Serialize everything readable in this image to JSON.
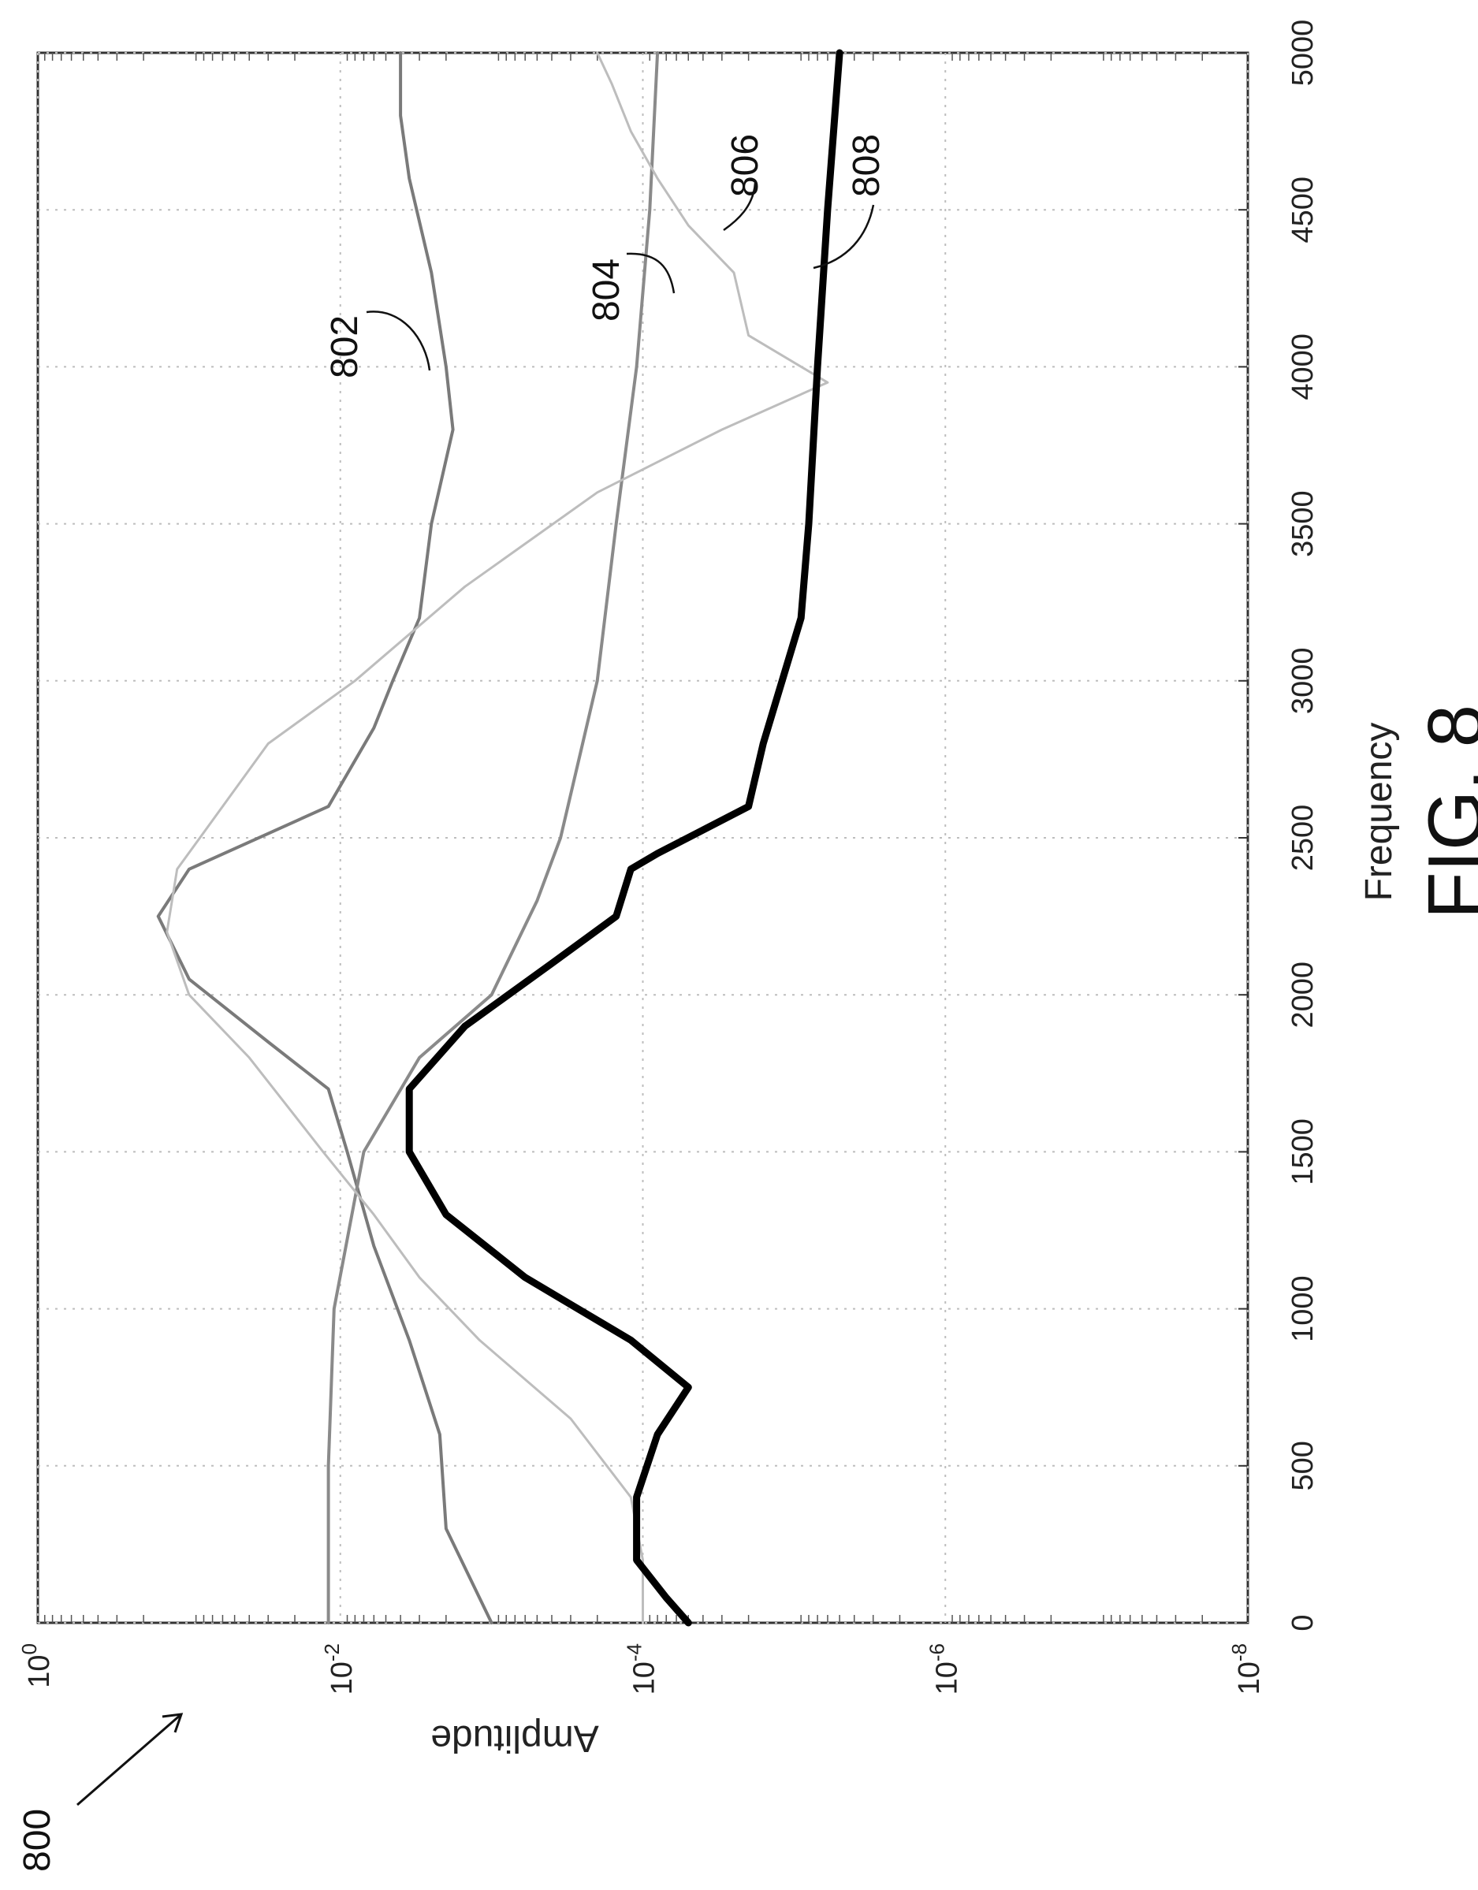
{
  "figure": {
    "ref_number": "800",
    "caption": "FIG. 8"
  },
  "chart_data": {
    "type": "line",
    "xlabel": "Frequency",
    "ylabel": "Amplitude",
    "xlim": [
      0,
      5000
    ],
    "ylim": [
      1e-08,
      1
    ],
    "yscale": "log",
    "grid": true,
    "x_ticks": [
      "0",
      "500",
      "1000",
      "1500",
      "2000",
      "2500",
      "3000",
      "3500",
      "4000",
      "4500",
      "5000"
    ],
    "y_ticks": [
      {
        "base": "10",
        "exp": "0"
      },
      {
        "base": "10",
        "exp": "-2"
      },
      {
        "base": "10",
        "exp": "-4"
      },
      {
        "base": "10",
        "exp": "-6"
      },
      {
        "base": "10",
        "exp": "-8"
      }
    ],
    "series": [
      {
        "name": "802",
        "color": "#7a7a7a",
        "x": [
          0,
          300,
          600,
          900,
          1200,
          1500,
          1700,
          1850,
          2050,
          2250,
          2400,
          2600,
          2850,
          3000,
          3200,
          3500,
          3800,
          4000,
          4300,
          4600,
          4800,
          5000
        ],
        "y": [
          0.001,
          0.002,
          0.0022,
          0.0035,
          0.006,
          0.009,
          0.012,
          0.03,
          0.1,
          0.16,
          0.1,
          0.012,
          0.006,
          0.0045,
          0.003,
          0.0025,
          0.0018,
          0.002,
          0.0025,
          0.0035,
          0.004,
          0.004
        ]
      },
      {
        "name": "804",
        "color": "#8a8a8a",
        "x": [
          0,
          500,
          1000,
          1500,
          1800,
          2000,
          2300,
          2500,
          2800,
          3000,
          3500,
          4000,
          4500,
          5000
        ],
        "y": [
          0.012,
          0.012,
          0.011,
          0.007,
          0.003,
          0.001,
          0.0005,
          0.00035,
          0.00025,
          0.0002,
          0.00015,
          0.00011,
          9e-05,
          8e-05
        ]
      },
      {
        "name": "806",
        "color": "#bdbdbd",
        "x": [
          0,
          200,
          400,
          650,
          900,
          1100,
          1300,
          1500,
          1800,
          2000,
          2200,
          2400,
          2800,
          3000,
          3300,
          3600,
          3800,
          3950,
          4100,
          4300,
          4450,
          4600,
          4750,
          4900,
          5000
        ],
        "y": [
          0.0001,
          0.0001,
          0.00012,
          0.0003,
          0.0012,
          0.003,
          0.006,
          0.013,
          0.04,
          0.1,
          0.14,
          0.12,
          0.03,
          0.008,
          0.0015,
          0.0002,
          3e-05,
          6e-06,
          2e-05,
          2.5e-05,
          5e-05,
          8e-05,
          0.00012,
          0.00016,
          0.0002
        ]
      },
      {
        "name": "808",
        "color": "#000000",
        "x": [
          0,
          80,
          200,
          400,
          600,
          750,
          900,
          1100,
          1300,
          1500,
          1700,
          1900,
          2100,
          2250,
          2400,
          2450,
          2600,
          2800,
          3000,
          3200,
          3500,
          4000,
          4500,
          5000
        ],
        "y": [
          5e-05,
          7e-05,
          0.00011,
          0.00011,
          8e-05,
          5e-05,
          0.00012,
          0.0006,
          0.002,
          0.0035,
          0.0035,
          0.0015,
          0.0004,
          0.00015,
          0.00012,
          8e-05,
          2e-05,
          1.6e-05,
          1.2e-05,
          9e-06,
          8e-06,
          7e-06,
          6e-06,
          5e-06
        ]
      }
    ]
  }
}
